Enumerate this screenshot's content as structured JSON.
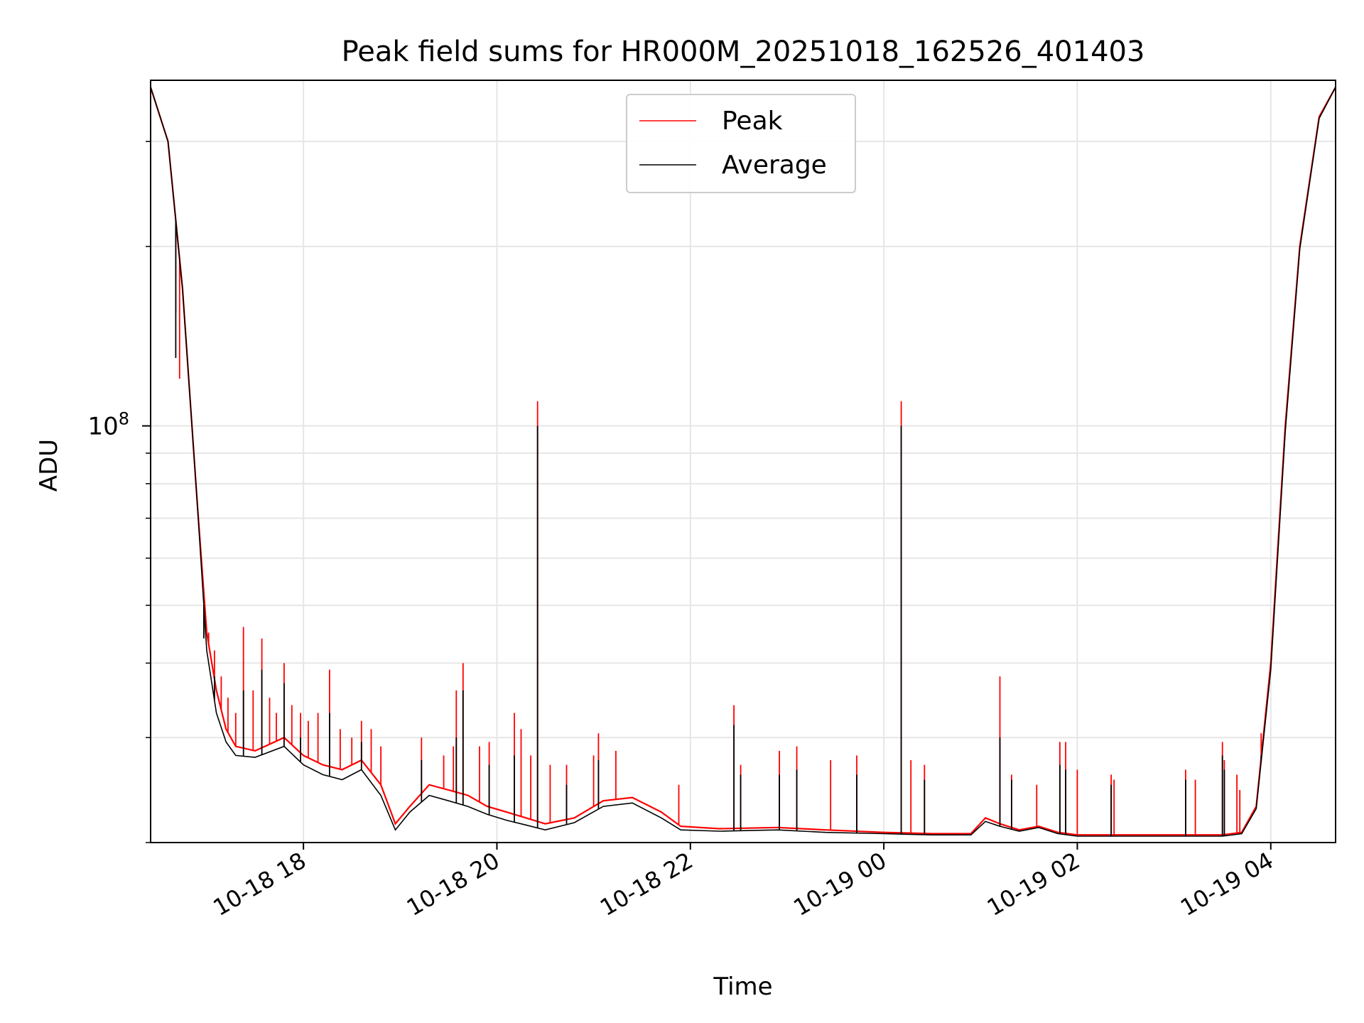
{
  "chart_data": {
    "type": "line",
    "title": "Peak field sums for HR000M_20251018_162526_401403",
    "xlabel": "Time",
    "ylabel": "ADU",
    "yscale": "log",
    "grid": true,
    "legend_position": "upper-center",
    "x_range_hours": [
      16.42,
      28.67
    ],
    "y_range": [
      20000000,
      380000000
    ],
    "x_tick_hours": [
      18,
      20,
      22,
      24,
      26,
      28
    ],
    "x_tick_labels": [
      "10-18 18",
      "10-18 20",
      "10-18 22",
      "10-19 00",
      "10-19 02",
      "10-19 04"
    ],
    "y_major_ticks": [
      {
        "value": 100000000,
        "base": "10",
        "exp": "8"
      }
    ],
    "y_minor_ticks": [
      20000000,
      30000000,
      40000000,
      50000000,
      60000000,
      70000000,
      80000000,
      90000000,
      200000000,
      300000000
    ],
    "series": [
      {
        "name": "Peak",
        "color": "#ff0000",
        "baseline": [
          [
            16.42,
            370000000
          ],
          [
            16.6,
            300000000
          ],
          [
            16.75,
            170000000
          ],
          [
            16.9,
            75000000
          ],
          [
            17.0,
            45000000
          ],
          [
            17.1,
            36000000
          ],
          [
            17.2,
            31000000
          ],
          [
            17.3,
            29000000
          ],
          [
            17.5,
            28500000
          ],
          [
            17.8,
            30000000
          ],
          [
            18.0,
            28000000
          ],
          [
            18.2,
            27000000
          ],
          [
            18.4,
            26500000
          ],
          [
            18.6,
            27500000
          ],
          [
            18.8,
            25000000
          ],
          [
            18.95,
            21500000
          ],
          [
            19.1,
            23000000
          ],
          [
            19.3,
            25000000
          ],
          [
            19.5,
            24500000
          ],
          [
            19.7,
            24000000
          ],
          [
            19.9,
            23000000
          ],
          [
            20.1,
            22500000
          ],
          [
            20.3,
            22000000
          ],
          [
            20.5,
            21500000
          ],
          [
            20.8,
            22000000
          ],
          [
            21.1,
            23500000
          ],
          [
            21.4,
            23800000
          ],
          [
            21.7,
            22500000
          ],
          [
            21.9,
            21300000
          ],
          [
            22.3,
            21100000
          ],
          [
            22.9,
            21200000
          ],
          [
            23.4,
            21000000
          ],
          [
            24.0,
            20800000
          ],
          [
            24.5,
            20700000
          ],
          [
            24.9,
            20700000
          ],
          [
            25.05,
            22000000
          ],
          [
            25.2,
            21500000
          ],
          [
            25.4,
            21000000
          ],
          [
            25.6,
            21300000
          ],
          [
            25.8,
            20800000
          ],
          [
            26.0,
            20600000
          ],
          [
            26.5,
            20600000
          ],
          [
            27.0,
            20600000
          ],
          [
            27.5,
            20600000
          ],
          [
            27.7,
            20800000
          ],
          [
            27.85,
            23000000
          ],
          [
            28.0,
            40000000
          ],
          [
            28.15,
            100000000
          ],
          [
            28.3,
            200000000
          ],
          [
            28.5,
            330000000
          ],
          [
            28.67,
            370000000
          ]
        ],
        "spikes": [
          [
            16.68,
            155000000
          ],
          [
            16.72,
            120000000
          ],
          [
            16.97,
            48000000
          ],
          [
            17.02,
            45000000
          ],
          [
            17.08,
            42000000
          ],
          [
            17.15,
            38000000
          ],
          [
            17.22,
            35000000
          ],
          [
            17.3,
            33000000
          ],
          [
            17.38,
            46000000
          ],
          [
            17.48,
            36000000
          ],
          [
            17.57,
            44000000
          ],
          [
            17.65,
            35000000
          ],
          [
            17.72,
            33000000
          ],
          [
            17.8,
            40000000
          ],
          [
            17.88,
            34000000
          ],
          [
            17.97,
            33000000
          ],
          [
            18.05,
            32000000
          ],
          [
            18.15,
            33000000
          ],
          [
            18.27,
            39000000
          ],
          [
            18.38,
            31000000
          ],
          [
            18.5,
            30000000
          ],
          [
            18.6,
            32000000
          ],
          [
            18.7,
            31000000
          ],
          [
            18.8,
            29000000
          ],
          [
            19.22,
            30000000
          ],
          [
            19.45,
            28000000
          ],
          [
            19.55,
            29000000
          ],
          [
            19.58,
            36000000
          ],
          [
            19.65,
            40000000
          ],
          [
            19.82,
            29000000
          ],
          [
            19.92,
            29500000
          ],
          [
            20.18,
            33000000
          ],
          [
            20.25,
            31000000
          ],
          [
            20.35,
            28000000
          ],
          [
            20.42,
            110000000
          ],
          [
            20.55,
            27000000
          ],
          [
            20.72,
            27000000
          ],
          [
            21.0,
            28000000
          ],
          [
            21.05,
            30500000
          ],
          [
            21.23,
            28500000
          ],
          [
            21.88,
            25000000
          ],
          [
            22.45,
            34000000
          ],
          [
            22.52,
            27000000
          ],
          [
            22.92,
            28500000
          ],
          [
            23.1,
            29000000
          ],
          [
            23.45,
            27500000
          ],
          [
            23.72,
            28000000
          ],
          [
            24.18,
            110000000
          ],
          [
            24.28,
            27500000
          ],
          [
            24.42,
            27000000
          ],
          [
            25.2,
            38000000
          ],
          [
            25.32,
            26000000
          ],
          [
            25.58,
            25000000
          ],
          [
            25.82,
            29500000
          ],
          [
            25.88,
            29500000
          ],
          [
            26.0,
            26500000
          ],
          [
            26.35,
            26000000
          ],
          [
            26.38,
            25500000
          ],
          [
            27.12,
            26500000
          ],
          [
            27.22,
            25500000
          ],
          [
            27.5,
            29500000
          ],
          [
            27.52,
            27500000
          ],
          [
            27.65,
            26000000
          ],
          [
            27.68,
            24500000
          ],
          [
            27.9,
            30500000
          ]
        ]
      },
      {
        "name": "Average",
        "color": "#000000",
        "baseline": [
          [
            16.42,
            370000000
          ],
          [
            16.6,
            300000000
          ],
          [
            16.75,
            170000000
          ],
          [
            16.9,
            75000000
          ],
          [
            17.0,
            42000000
          ],
          [
            17.1,
            33000000
          ],
          [
            17.2,
            29500000
          ],
          [
            17.3,
            28000000
          ],
          [
            17.5,
            27800000
          ],
          [
            17.8,
            29000000
          ],
          [
            18.0,
            27000000
          ],
          [
            18.2,
            26000000
          ],
          [
            18.4,
            25500000
          ],
          [
            18.6,
            26500000
          ],
          [
            18.8,
            24000000
          ],
          [
            18.95,
            21000000
          ],
          [
            19.1,
            22500000
          ],
          [
            19.3,
            24000000
          ],
          [
            19.5,
            23500000
          ],
          [
            19.7,
            23000000
          ],
          [
            19.9,
            22300000
          ],
          [
            20.1,
            21800000
          ],
          [
            20.3,
            21400000
          ],
          [
            20.5,
            21000000
          ],
          [
            20.8,
            21600000
          ],
          [
            21.1,
            23000000
          ],
          [
            21.4,
            23300000
          ],
          [
            21.7,
            22000000
          ],
          [
            21.9,
            21000000
          ],
          [
            22.3,
            20900000
          ],
          [
            22.9,
            21000000
          ],
          [
            23.4,
            20800000
          ],
          [
            24.0,
            20700000
          ],
          [
            24.5,
            20600000
          ],
          [
            24.9,
            20600000
          ],
          [
            25.05,
            21700000
          ],
          [
            25.2,
            21300000
          ],
          [
            25.4,
            20900000
          ],
          [
            25.6,
            21200000
          ],
          [
            25.8,
            20700000
          ],
          [
            26.0,
            20500000
          ],
          [
            26.5,
            20500000
          ],
          [
            27.0,
            20500000
          ],
          [
            27.5,
            20500000
          ],
          [
            27.7,
            20700000
          ],
          [
            27.85,
            22800000
          ],
          [
            28.0,
            39000000
          ],
          [
            28.15,
            98000000
          ],
          [
            28.3,
            198000000
          ],
          [
            28.5,
            328000000
          ],
          [
            28.67,
            370000000
          ]
        ],
        "spikes": [
          [
            16.68,
            130000000
          ],
          [
            16.97,
            44000000
          ],
          [
            17.08,
            38000000
          ],
          [
            17.38,
            36000000
          ],
          [
            17.57,
            39000000
          ],
          [
            17.8,
            37000000
          ],
          [
            17.97,
            30000000
          ],
          [
            18.27,
            33000000
          ],
          [
            18.6,
            29500000
          ],
          [
            19.22,
            27500000
          ],
          [
            19.58,
            30000000
          ],
          [
            19.65,
            36000000
          ],
          [
            19.92,
            27000000
          ],
          [
            20.18,
            28000000
          ],
          [
            20.42,
            100000000
          ],
          [
            20.72,
            25000000
          ],
          [
            21.05,
            27500000
          ],
          [
            22.45,
            31500000
          ],
          [
            22.52,
            26000000
          ],
          [
            22.92,
            26000000
          ],
          [
            23.1,
            26500000
          ],
          [
            23.72,
            26000000
          ],
          [
            24.18,
            100000000
          ],
          [
            24.42,
            25500000
          ],
          [
            25.2,
            30000000
          ],
          [
            25.32,
            25500000
          ],
          [
            25.82,
            27000000
          ],
          [
            25.88,
            26500000
          ],
          [
            26.35,
            25000000
          ],
          [
            27.12,
            25500000
          ],
          [
            27.5,
            28000000
          ],
          [
            27.52,
            26500000
          ],
          [
            27.9,
            28000000
          ]
        ]
      }
    ]
  }
}
